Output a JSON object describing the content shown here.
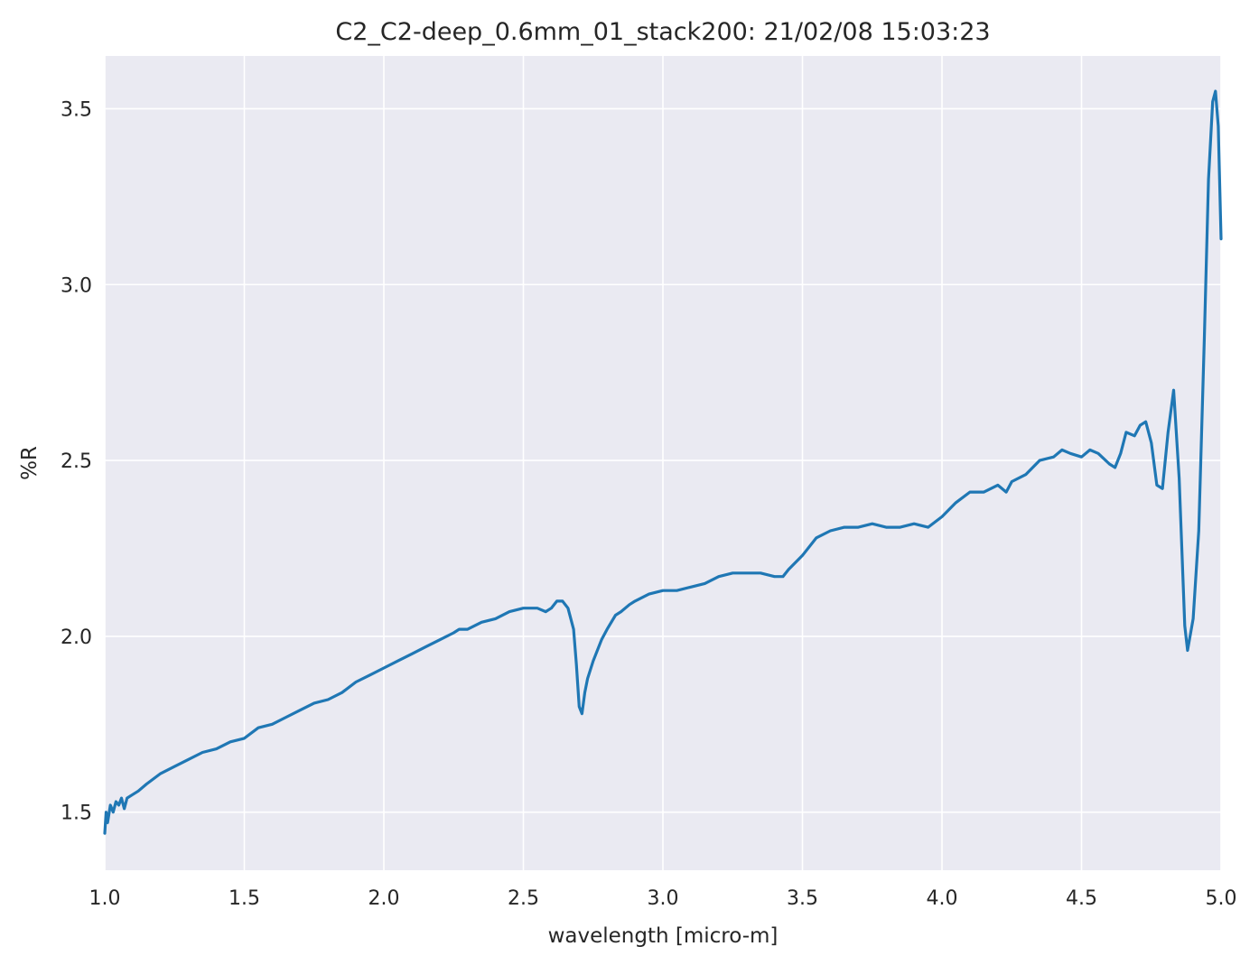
{
  "chart_data": {
    "type": "line",
    "title": "C2_C2-deep_0.6mm_01_stack200:  21/02/08 15:03:23",
    "xlabel": "wavelength [micro-m]",
    "ylabel": "%R",
    "xlim": [
      1.0,
      5.0
    ],
    "ylim": [
      1.335,
      3.65
    ],
    "xticks": [
      1.0,
      1.5,
      2.0,
      2.5,
      3.0,
      3.5,
      4.0,
      4.5,
      5.0
    ],
    "xtick_labels": [
      "1.0",
      "1.5",
      "2.0",
      "2.5",
      "3.0",
      "3.5",
      "4.0",
      "4.5",
      "5.0"
    ],
    "yticks": [
      1.5,
      2.0,
      2.5,
      3.0,
      3.5
    ],
    "ytick_labels": [
      "1.5",
      "2.0",
      "2.5",
      "3.0",
      "3.5"
    ],
    "grid": true,
    "background_color": "#eaeaf2",
    "grid_color": "#ffffff",
    "line_color": "#1f77b4",
    "series": [
      {
        "x": [
          1.0,
          1.005,
          1.01,
          1.02,
          1.03,
          1.04,
          1.05,
          1.06,
          1.07,
          1.08,
          1.1,
          1.12,
          1.15,
          1.2,
          1.25,
          1.3,
          1.35,
          1.4,
          1.45,
          1.5,
          1.55,
          1.6,
          1.65,
          1.7,
          1.75,
          1.8,
          1.85,
          1.9,
          1.95,
          2.0,
          2.05,
          2.1,
          2.15,
          2.2,
          2.25,
          2.27,
          2.3,
          2.35,
          2.4,
          2.45,
          2.5,
          2.55,
          2.58,
          2.6,
          2.62,
          2.64,
          2.66,
          2.68,
          2.69,
          2.7,
          2.71,
          2.72,
          2.73,
          2.75,
          2.78,
          2.8,
          2.83,
          2.85,
          2.88,
          2.9,
          2.95,
          3.0,
          3.05,
          3.1,
          3.15,
          3.2,
          3.25,
          3.3,
          3.35,
          3.4,
          3.43,
          3.45,
          3.5,
          3.55,
          3.6,
          3.65,
          3.7,
          3.75,
          3.8,
          3.85,
          3.9,
          3.95,
          4.0,
          4.05,
          4.1,
          4.15,
          4.2,
          4.23,
          4.25,
          4.3,
          4.35,
          4.4,
          4.43,
          4.46,
          4.5,
          4.53,
          4.56,
          4.6,
          4.62,
          4.64,
          4.66,
          4.69,
          4.71,
          4.73,
          4.75,
          4.77,
          4.79,
          4.81,
          4.83,
          4.85,
          4.87,
          4.88,
          4.9,
          4.92,
          4.94,
          4.955,
          4.97,
          4.98,
          4.99,
          5.0
        ],
        "y": [
          1.44,
          1.5,
          1.47,
          1.52,
          1.5,
          1.53,
          1.52,
          1.54,
          1.51,
          1.54,
          1.55,
          1.56,
          1.58,
          1.61,
          1.63,
          1.65,
          1.67,
          1.68,
          1.7,
          1.71,
          1.74,
          1.75,
          1.77,
          1.79,
          1.81,
          1.82,
          1.84,
          1.87,
          1.89,
          1.91,
          1.93,
          1.95,
          1.97,
          1.99,
          2.01,
          2.02,
          2.02,
          2.04,
          2.05,
          2.07,
          2.08,
          2.08,
          2.07,
          2.08,
          2.1,
          2.1,
          2.08,
          2.02,
          1.92,
          1.8,
          1.78,
          1.84,
          1.88,
          1.93,
          1.99,
          2.02,
          2.06,
          2.07,
          2.09,
          2.1,
          2.12,
          2.13,
          2.13,
          2.14,
          2.15,
          2.17,
          2.18,
          2.18,
          2.18,
          2.17,
          2.17,
          2.19,
          2.23,
          2.28,
          2.3,
          2.31,
          2.31,
          2.32,
          2.31,
          2.31,
          2.32,
          2.31,
          2.34,
          2.38,
          2.41,
          2.41,
          2.43,
          2.41,
          2.44,
          2.46,
          2.5,
          2.51,
          2.53,
          2.52,
          2.51,
          2.53,
          2.52,
          2.49,
          2.48,
          2.52,
          2.58,
          2.57,
          2.6,
          2.61,
          2.55,
          2.43,
          2.42,
          2.58,
          2.7,
          2.45,
          2.03,
          1.96,
          2.05,
          2.3,
          2.85,
          3.3,
          3.52,
          3.55,
          3.45,
          3.13
        ]
      }
    ]
  }
}
